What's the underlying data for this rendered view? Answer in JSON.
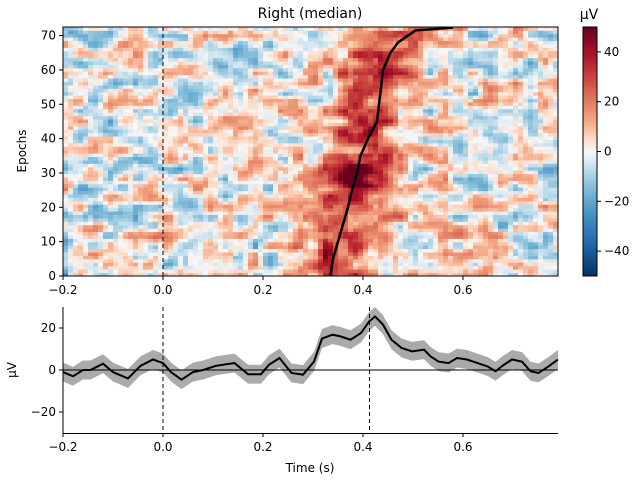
{
  "chart_data": [
    {
      "type": "heatmap",
      "title": "Right (median)",
      "xlabel": "",
      "ylabel": "Epochs",
      "xlim": [
        -0.2,
        0.79
      ],
      "ylim": [
        0,
        72.5
      ],
      "xticks": [
        "-0.2",
        "0.0",
        "0.2",
        "0.4",
        "0.6"
      ],
      "xtick_values": [
        -0.2,
        0.0,
        0.2,
        0.4,
        0.6
      ],
      "yticks": [
        "0",
        "10",
        "20",
        "30",
        "40",
        "50",
        "60",
        "70"
      ],
      "ytick_values": [
        0,
        10,
        20,
        30,
        40,
        50,
        60,
        70
      ],
      "colormap": "RdBu_r",
      "colorbar": {
        "label": "µV",
        "vmin": -50,
        "vmax": 50,
        "ticks": [
          "40",
          "20",
          "0",
          "−20",
          "−40"
        ],
        "tick_values": [
          40,
          20,
          0,
          -20,
          -40
        ]
      },
      "vline_time": 0.0,
      "sort_line": {
        "epoch": [
          0,
          5,
          10,
          15,
          20,
          25,
          30,
          35,
          40,
          45,
          50,
          55,
          60,
          65,
          68,
          70,
          71.5,
          72.3
        ],
        "time": [
          0.335,
          0.34,
          0.35,
          0.36,
          0.37,
          0.378,
          0.388,
          0.395,
          0.41,
          0.428,
          0.432,
          0.436,
          0.44,
          0.455,
          0.47,
          0.49,
          0.505,
          0.58
        ]
      }
    },
    {
      "type": "line",
      "xlabel": "Time (s)",
      "ylabel": "µV",
      "xlim": [
        -0.2,
        0.79
      ],
      "ylim": [
        -30,
        30
      ],
      "xticks": [
        "−0.2",
        "0.0",
        "0.2",
        "0.4",
        "0.6"
      ],
      "xtick_values": [
        -0.2,
        0.0,
        0.2,
        0.4,
        0.6
      ],
      "yticks": [
        "20",
        "0",
        "−20"
      ],
      "ytick_values": [
        20,
        0,
        -20
      ],
      "vlines": [
        0.0,
        0.413
      ],
      "hline": 0,
      "ci_halfwidth": 4.5,
      "x": [
        -0.2,
        -0.18,
        -0.16,
        -0.145,
        -0.12,
        -0.1,
        -0.07,
        -0.045,
        -0.02,
        0,
        0.016,
        0.037,
        0.06,
        0.08,
        0.106,
        0.143,
        0.17,
        0.196,
        0.212,
        0.233,
        0.257,
        0.28,
        0.302,
        0.318,
        0.339,
        0.355,
        0.375,
        0.396,
        0.412,
        0.424,
        0.44,
        0.457,
        0.477,
        0.498,
        0.522,
        0.535,
        0.551,
        0.571,
        0.588,
        0.608,
        0.629,
        0.649,
        0.665,
        0.682,
        0.698,
        0.718,
        0.735,
        0.751,
        0.771,
        0.79
      ],
      "y": [
        -1,
        -3,
        0,
        0,
        3,
        -1,
        -4,
        2,
        5,
        3.3,
        -1,
        -4.6,
        -1,
        0,
        2,
        3.3,
        -2,
        -2,
        2.5,
        5.7,
        -1.4,
        -2.2,
        4,
        15,
        16.8,
        16,
        14.4,
        17.6,
        23,
        25.5,
        21.6,
        14.4,
        10.5,
        8.9,
        9.7,
        6.5,
        4,
        3.3,
        5.7,
        5,
        3.3,
        1.7,
        -0.6,
        2.5,
        5,
        4,
        -0.6,
        -1.4,
        1.7,
        5
      ]
    }
  ]
}
